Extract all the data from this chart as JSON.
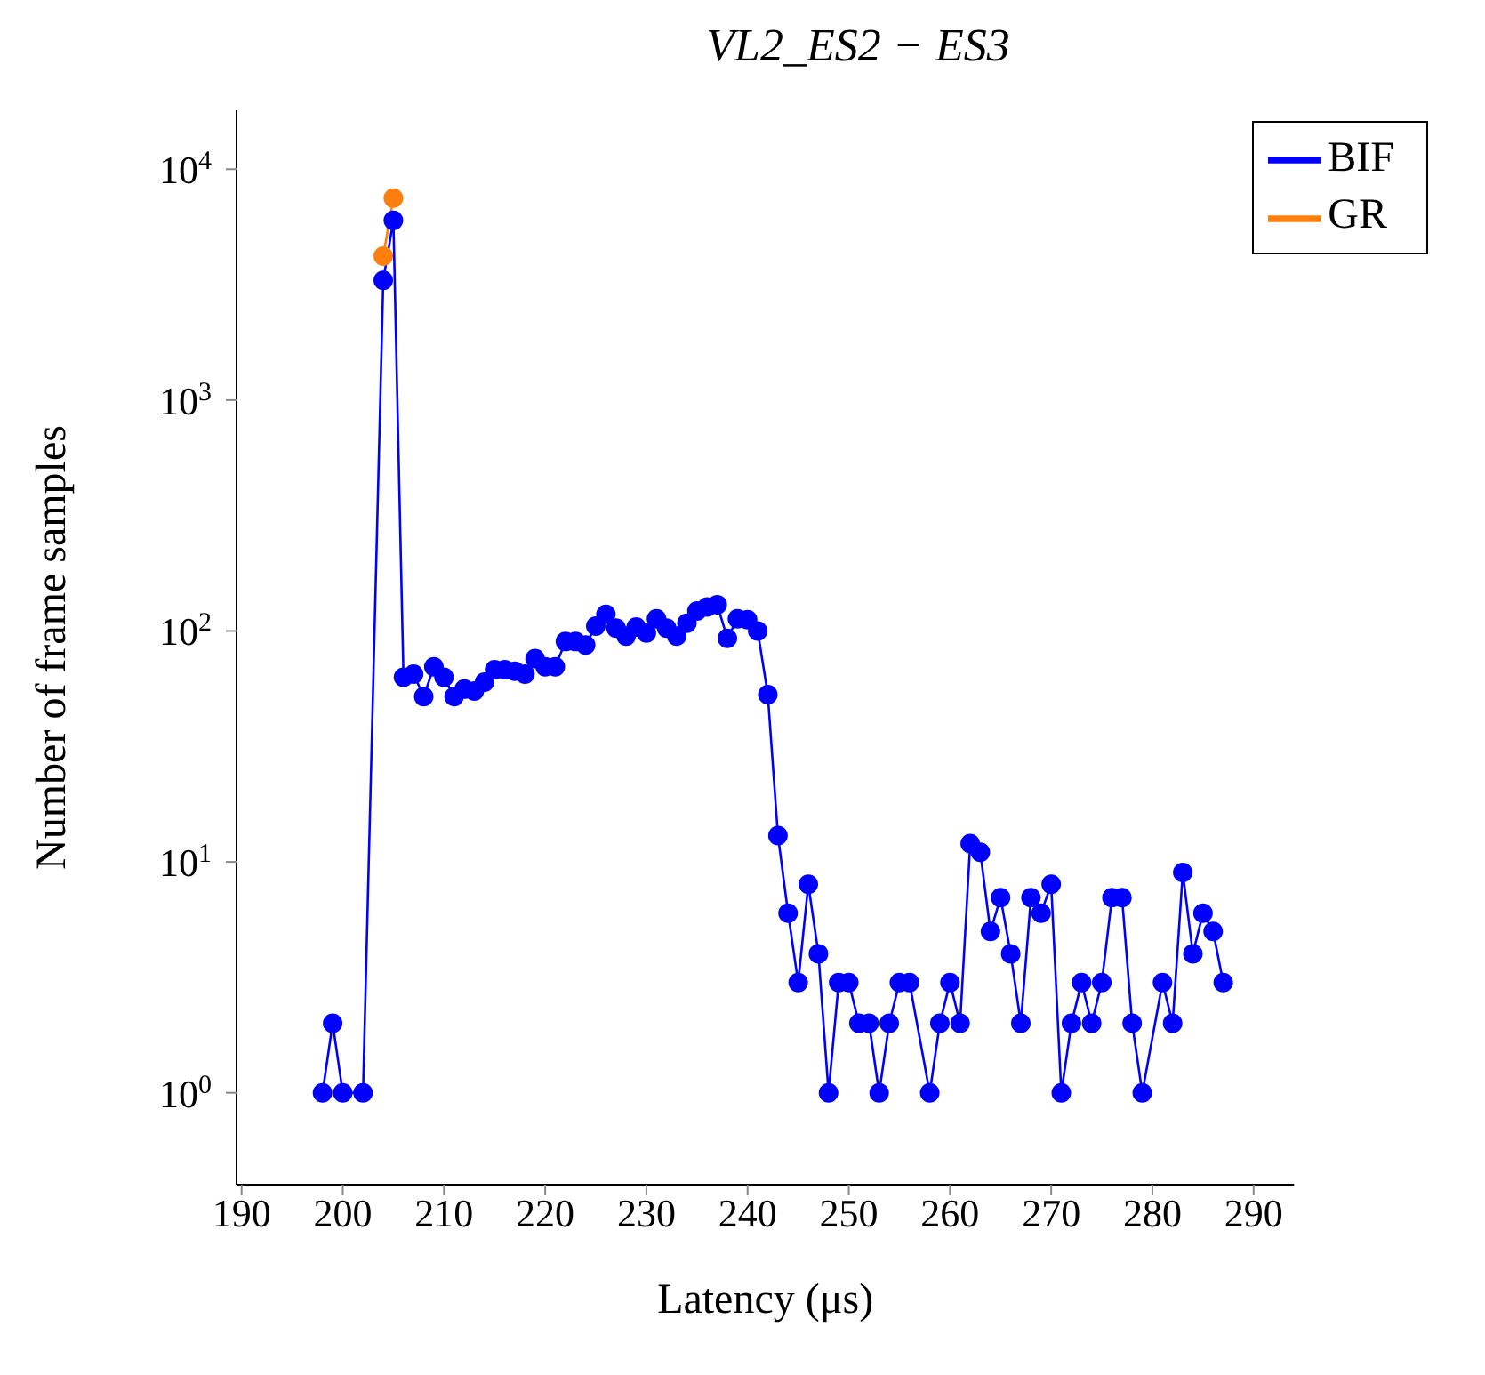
{
  "chart_data": {
    "type": "line",
    "title": "VL2_ES2 − ES3",
    "xlabel": "Latency (μs)",
    "ylabel": "Number of frame samples",
    "log": "y",
    "legend": "top right",
    "marker": "circle",
    "line_style": "solid",
    "xlim": [
      189.5,
      294
    ],
    "xticks": [
      190,
      200,
      210,
      220,
      230,
      240,
      250,
      260,
      270,
      280,
      290
    ],
    "ylim": [
      0.4,
      18000
    ],
    "yticks": [
      {
        "value": 1,
        "label": "10$^{0}$"
      },
      {
        "value": 10,
        "label": "10$^{1}$"
      },
      {
        "value": 100,
        "label": "10$^{2}$"
      },
      {
        "value": 1000,
        "label": "10$^{3}$"
      },
      {
        "value": 10000,
        "label": "10$^{4}$"
      }
    ],
    "series": [
      {
        "name": "BIF",
        "color": "#0000ff",
        "x": [
          198,
          199,
          200,
          202,
          204,
          205,
          206,
          207,
          208,
          209,
          210,
          211,
          212,
          213,
          214,
          215,
          216,
          217,
          218,
          219,
          220,
          221,
          222,
          223,
          224,
          225,
          226,
          227,
          228,
          229,
          230,
          231,
          232,
          233,
          234,
          235,
          236,
          237,
          238,
          239,
          240,
          241,
          242,
          243,
          244,
          245,
          246,
          247,
          248,
          249,
          250,
          251,
          252,
          253,
          254,
          255,
          256,
          258,
          259,
          260,
          261,
          262,
          263,
          264,
          265,
          266,
          267,
          268,
          269,
          270,
          271,
          272,
          273,
          274,
          275,
          276,
          277,
          278,
          279,
          281,
          282,
          283,
          284,
          285,
          286,
          287
        ],
        "values": [
          1,
          2,
          1,
          1,
          3300,
          6000,
          63,
          65,
          52,
          70,
          63,
          52,
          56,
          55,
          60,
          68,
          68,
          67,
          65,
          76,
          70,
          70,
          90,
          90,
          87,
          105,
          118,
          103,
          95,
          104,
          98,
          113,
          103,
          95,
          108,
          122,
          127,
          130,
          93,
          113,
          112,
          100,
          53,
          13,
          6,
          3,
          8,
          4,
          1,
          3,
          3,
          2,
          2,
          1,
          2,
          3,
          3,
          1,
          2,
          3,
          2,
          12,
          11,
          5,
          7,
          4,
          2,
          7,
          6,
          8,
          1,
          2,
          3,
          2,
          3,
          7,
          7,
          2,
          1,
          3,
          2,
          9,
          4,
          6,
          5,
          3
        ]
      },
      {
        "name": "GR",
        "color": "#ff7f0e",
        "x": [
          204,
          205
        ],
        "values": [
          4200,
          7500
        ]
      }
    ]
  }
}
